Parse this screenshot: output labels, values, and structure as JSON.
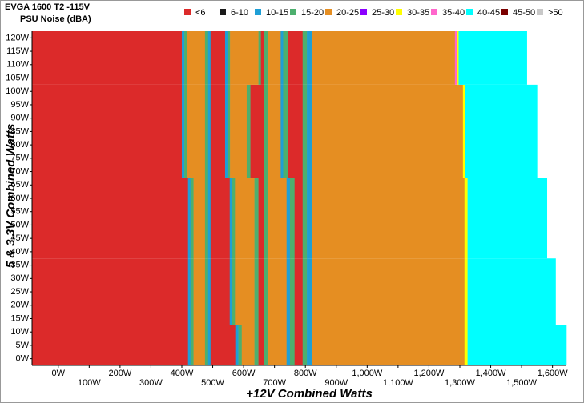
{
  "chart_data": {
    "type": "heatmap",
    "title": "EVGA 1600 T2 -115V",
    "subtitle": "PSU Noise (dBA)",
    "x_label": "+12V Combined Watts",
    "y_label": "5 & 3.3V Combined Watts",
    "series": [
      {
        "name": "<6",
        "color": "#dc2a2a"
      },
      {
        "name": "6-10",
        "color": "#1a1a1a"
      },
      {
        "name": "10-15",
        "color": "#1e9fd6"
      },
      {
        "name": "15-20",
        "color": "#4daf6e"
      },
      {
        "name": "20-25",
        "color": "#e58e22"
      },
      {
        "name": "25-30",
        "color": "#8b00ff"
      },
      {
        "name": "30-35",
        "color": "#ffff00"
      },
      {
        "name": "35-40",
        "color": "#ff66cc"
      },
      {
        "name": "40-45",
        "color": "#00ffff"
      },
      {
        "name": "45-50",
        "color": "#7a0000"
      },
      {
        "name": ">50",
        "color": "#c8c8c8"
      }
    ],
    "bands": [
      {
        "y": [
          -2.5,
          12.5
        ],
        "segments": [
          {
            "level": "<6",
            "x": [
              -85,
              420
            ]
          },
          {
            "level": "10-15",
            "x": [
              420,
              428
            ]
          },
          {
            "level": "15-20",
            "x": [
              428,
              438
            ]
          },
          {
            "level": "20-25",
            "x": [
              438,
              475
            ]
          },
          {
            "level": "15-20",
            "x": [
              475,
              485
            ]
          },
          {
            "level": "10-15",
            "x": [
              485,
              493
            ]
          },
          {
            "level": "<6",
            "x": [
              493,
              573
            ]
          },
          {
            "level": "10-15",
            "x": [
              573,
              583
            ]
          },
          {
            "level": "15-20",
            "x": [
              583,
              594
            ]
          },
          {
            "level": "20-25",
            "x": [
              594,
              635
            ]
          },
          {
            "level": "15-20",
            "x": [
              635,
              648
            ]
          },
          {
            "level": "<6",
            "x": [
              648,
              666
            ]
          },
          {
            "level": "15-20",
            "x": [
              666,
              680
            ]
          },
          {
            "level": "20-25",
            "x": [
              680,
              739
            ]
          },
          {
            "level": "10-15",
            "x": [
              739,
              750
            ]
          },
          {
            "level": "15-20",
            "x": [
              750,
              765
            ]
          },
          {
            "level": "<6",
            "x": [
              765,
              791
            ]
          },
          {
            "level": "15-20",
            "x": [
              791,
              805
            ]
          },
          {
            "level": "10-15",
            "x": [
              805,
              822
            ]
          },
          {
            "level": "20-25",
            "x": [
              822,
              1315
            ]
          },
          {
            "level": "30-35",
            "x": [
              1315,
              1325
            ]
          },
          {
            "level": "40-45",
            "x": [
              1325,
              1645
            ]
          }
        ]
      },
      {
        "y": [
          12.5,
          37.5
        ],
        "segments": [
          {
            "level": "<6",
            "x": [
              -85,
              420
            ]
          },
          {
            "level": "10-15",
            "x": [
              420,
              428
            ]
          },
          {
            "level": "15-20",
            "x": [
              428,
              438
            ]
          },
          {
            "level": "20-25",
            "x": [
              438,
              475
            ]
          },
          {
            "level": "15-20",
            "x": [
              475,
              485
            ]
          },
          {
            "level": "10-15",
            "x": [
              485,
              493
            ]
          },
          {
            "level": "<6",
            "x": [
              493,
              555
            ]
          },
          {
            "level": "10-15",
            "x": [
              555,
              563
            ]
          },
          {
            "level": "15-20",
            "x": [
              563,
              572
            ]
          },
          {
            "level": "20-25",
            "x": [
              572,
              635
            ]
          },
          {
            "level": "15-20",
            "x": [
              635,
              648
            ]
          },
          {
            "level": "<6",
            "x": [
              648,
              666
            ]
          },
          {
            "level": "15-20",
            "x": [
              666,
              680
            ]
          },
          {
            "level": "20-25",
            "x": [
              680,
              739
            ]
          },
          {
            "level": "10-15",
            "x": [
              739,
              750
            ]
          },
          {
            "level": "15-20",
            "x": [
              750,
              765
            ]
          },
          {
            "level": "<6",
            "x": [
              765,
              791
            ]
          },
          {
            "level": "15-20",
            "x": [
              791,
              805
            ]
          },
          {
            "level": "10-15",
            "x": [
              805,
              822
            ]
          },
          {
            "level": "20-25",
            "x": [
              822,
              1315
            ]
          },
          {
            "level": "30-35",
            "x": [
              1315,
              1325
            ]
          },
          {
            "level": "40-45",
            "x": [
              1325,
              1610
            ]
          }
        ]
      },
      {
        "y": [
          37.5,
          67.5
        ],
        "segments": [
          {
            "level": "<6",
            "x": [
              -85,
              420
            ]
          },
          {
            "level": "10-15",
            "x": [
              420,
              428
            ]
          },
          {
            "level": "15-20",
            "x": [
              428,
              438
            ]
          },
          {
            "level": "20-25",
            "x": [
              438,
              475
            ]
          },
          {
            "level": "15-20",
            "x": [
              475,
              485
            ]
          },
          {
            "level": "10-15",
            "x": [
              485,
              493
            ]
          },
          {
            "level": "<6",
            "x": [
              493,
              555
            ]
          },
          {
            "level": "10-15",
            "x": [
              555,
              563
            ]
          },
          {
            "level": "15-20",
            "x": [
              563,
              572
            ]
          },
          {
            "level": "20-25",
            "x": [
              572,
              635
            ]
          },
          {
            "level": "15-20",
            "x": [
              635,
              648
            ]
          },
          {
            "level": "<6",
            "x": [
              648,
              666
            ]
          },
          {
            "level": "15-20",
            "x": [
              666,
              680
            ]
          },
          {
            "level": "20-25",
            "x": [
              680,
              739
            ]
          },
          {
            "level": "10-15",
            "x": [
              739,
              750
            ]
          },
          {
            "level": "15-20",
            "x": [
              750,
              765
            ]
          },
          {
            "level": "<6",
            "x": [
              765,
              791
            ]
          },
          {
            "level": "15-20",
            "x": [
              791,
              805
            ]
          },
          {
            "level": "10-15",
            "x": [
              805,
              822
            ]
          },
          {
            "level": "20-25",
            "x": [
              822,
              1315
            ]
          },
          {
            "level": "30-35",
            "x": [
              1315,
              1325
            ]
          },
          {
            "level": "40-45",
            "x": [
              1325,
              1582
            ]
          }
        ]
      },
      {
        "y": [
          67.5,
          102.5
        ],
        "segments": [
          {
            "level": "<6",
            "x": [
              -85,
              400
            ]
          },
          {
            "level": "10-15",
            "x": [
              400,
              408
            ]
          },
          {
            "level": "15-20",
            "x": [
              408,
              418
            ]
          },
          {
            "level": "20-25",
            "x": [
              418,
              475
            ]
          },
          {
            "level": "15-20",
            "x": [
              475,
              485
            ]
          },
          {
            "level": "10-15",
            "x": [
              485,
              493
            ]
          },
          {
            "level": "<6",
            "x": [
              493,
              540
            ]
          },
          {
            "level": "10-15",
            "x": [
              540,
              548
            ]
          },
          {
            "level": "15-20",
            "x": [
              548,
              556
            ]
          },
          {
            "level": "20-25",
            "x": [
              556,
              610
            ]
          },
          {
            "level": "15-20",
            "x": [
              610,
              622
            ]
          },
          {
            "level": "<6",
            "x": [
              622,
              666
            ]
          },
          {
            "level": "15-20",
            "x": [
              666,
              680
            ]
          },
          {
            "level": "20-25",
            "x": [
              680,
              720
            ]
          },
          {
            "level": "10-15",
            "x": [
              720,
              728
            ]
          },
          {
            "level": "15-20",
            "x": [
              728,
              745
            ]
          },
          {
            "level": "<6",
            "x": [
              745,
              791
            ]
          },
          {
            "level": "15-20",
            "x": [
              791,
              805
            ]
          },
          {
            "level": "10-15",
            "x": [
              805,
              822
            ]
          },
          {
            "level": "20-25",
            "x": [
              822,
              1310
            ]
          },
          {
            "level": "30-35",
            "x": [
              1310,
              1318
            ]
          },
          {
            "level": "40-45",
            "x": [
              1318,
              1550
            ]
          }
        ]
      },
      {
        "y": [
          102.5,
          122.5
        ],
        "segments": [
          {
            "level": "<6",
            "x": [
              -85,
              400
            ]
          },
          {
            "level": "10-15",
            "x": [
              400,
              408
            ]
          },
          {
            "level": "15-20",
            "x": [
              408,
              418
            ]
          },
          {
            "level": "20-25",
            "x": [
              418,
              475
            ]
          },
          {
            "level": "15-20",
            "x": [
              475,
              485
            ]
          },
          {
            "level": "10-15",
            "x": [
              485,
              493
            ]
          },
          {
            "level": "<6",
            "x": [
              493,
              540
            ]
          },
          {
            "level": "10-15",
            "x": [
              540,
              548
            ]
          },
          {
            "level": "15-20",
            "x": [
              548,
              556
            ]
          },
          {
            "level": "20-25",
            "x": [
              556,
              648
            ]
          },
          {
            "level": "15-20",
            "x": [
              648,
              656
            ]
          },
          {
            "level": "<6",
            "x": [
              656,
              666
            ]
          },
          {
            "level": "15-20",
            "x": [
              666,
              680
            ]
          },
          {
            "level": "20-25",
            "x": [
              680,
              720
            ]
          },
          {
            "level": "10-15",
            "x": [
              720,
              728
            ]
          },
          {
            "level": "15-20",
            "x": [
              728,
              745
            ]
          },
          {
            "level": "<6",
            "x": [
              745,
              791
            ]
          },
          {
            "level": "15-20",
            "x": [
              791,
              805
            ]
          },
          {
            "level": "10-15",
            "x": [
              805,
              822
            ]
          },
          {
            "level": "20-25",
            "x": [
              822,
              1284
            ]
          },
          {
            "level": "35-40",
            "x": [
              1284,
              1290
            ]
          },
          {
            "level": "30-35",
            "x": [
              1290,
              1296
            ]
          },
          {
            "level": "40-45",
            "x": [
              1296,
              1517
            ]
          }
        ]
      }
    ],
    "xlim": [
      -85,
      1645
    ],
    "ylim": [
      -2.5,
      122.5
    ],
    "xticks": [
      {
        "value": 0,
        "label": "0W"
      },
      {
        "value": 100,
        "label": "100W"
      },
      {
        "value": 200,
        "label": "200W"
      },
      {
        "value": 300,
        "label": "300W"
      },
      {
        "value": 400,
        "label": "400W"
      },
      {
        "value": 500,
        "label": "500W"
      },
      {
        "value": 600,
        "label": "600W"
      },
      {
        "value": 700,
        "label": "700W"
      },
      {
        "value": 800,
        "label": "800W"
      },
      {
        "value": 900,
        "label": "900W"
      },
      {
        "value": 1000,
        "label": "1,000W"
      },
      {
        "value": 1100,
        "label": "1,100W"
      },
      {
        "value": 1200,
        "label": "1,200W"
      },
      {
        "value": 1300,
        "label": "1,300W"
      },
      {
        "value": 1400,
        "label": "1,400W"
      },
      {
        "value": 1500,
        "label": "1,500W"
      },
      {
        "value": 1600,
        "label": "1,600W"
      }
    ],
    "yticks": [
      {
        "value": 0,
        "label": "0W"
      },
      {
        "value": 5,
        "label": "5W"
      },
      {
        "value": 10,
        "label": "10W"
      },
      {
        "value": 15,
        "label": "15W"
      },
      {
        "value": 20,
        "label": "20W"
      },
      {
        "value": 25,
        "label": "25W"
      },
      {
        "value": 30,
        "label": "30W"
      },
      {
        "value": 35,
        "label": "35W"
      },
      {
        "value": 40,
        "label": "40W"
      },
      {
        "value": 45,
        "label": "45W"
      },
      {
        "value": 50,
        "label": "50W"
      },
      {
        "value": 55,
        "label": "55W"
      },
      {
        "value": 60,
        "label": "60W"
      },
      {
        "value": 65,
        "label": "65W"
      },
      {
        "value": 70,
        "label": "70W"
      },
      {
        "value": 75,
        "label": "75W"
      },
      {
        "value": 80,
        "label": "80W"
      },
      {
        "value": 85,
        "label": "85W"
      },
      {
        "value": 90,
        "label": "90W"
      },
      {
        "value": 95,
        "label": "95W"
      },
      {
        "value": 100,
        "label": "100W"
      },
      {
        "value": 105,
        "label": "105W"
      },
      {
        "value": 110,
        "label": "110W"
      },
      {
        "value": 115,
        "label": "115W"
      },
      {
        "value": 120,
        "label": "120W"
      }
    ]
  }
}
